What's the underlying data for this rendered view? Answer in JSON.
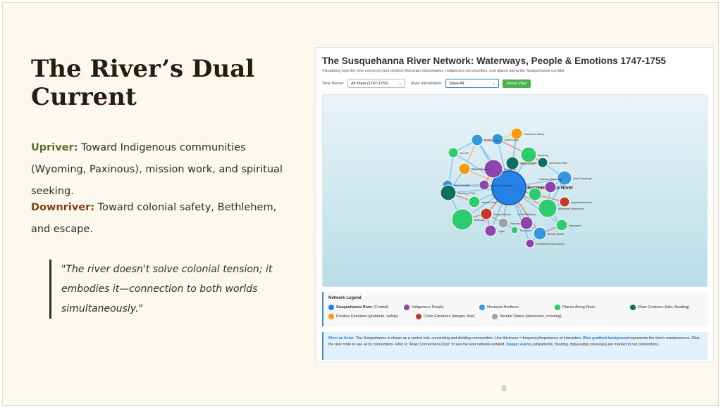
{
  "slide": {
    "title": "The River’s Dual Current",
    "upriver_label": "Upriver:",
    "upriver_text": " Toward Indigenous communities (Wyoming, Paxinous), mission work, and spiritual seeking.",
    "downriver_label": "Downriver:",
    "downriver_text": " Toward colonial safety, Bethlehem, and escape.",
    "quote": "\"The river doesn't solve colonial tension; it embodies it—connection to both worlds simultaneously.\"",
    "page_number": "8"
  },
  "app": {
    "title": "The Susquehanna River Network: Waterways, People & Emotions 1747-1755",
    "subtitle": "Visualizing how the river connects (and divides) Moravian missionaries, Indigenous communities, and places along the Susquehanna corridor",
    "time_label": "Time Period:",
    "time_value": "All Years (1747-1755)",
    "interactions_label": "River Interactions:",
    "interactions_value": "Show All",
    "reset_label": "Reset View"
  },
  "colors": {
    "river": "#2481e6",
    "indigenous": "#8e44ad",
    "moravian": "#3498db",
    "places": "#2ecc71",
    "features": "#0e7060",
    "positive": "#f39c12",
    "crisis": "#c0392b",
    "neutral": "#95a5a6"
  },
  "nodes": [
    {
      "label": "Susquehanna River",
      "type": "river"
    },
    {
      "label": "Grateful for Safety",
      "type": "positive"
    },
    {
      "label": "Martin Mack",
      "type": "moravian"
    },
    {
      "label": "Brother Grube",
      "type": "moravian"
    },
    {
      "label": "The Mill",
      "type": "places"
    },
    {
      "label": "Wyoming",
      "type": "places"
    },
    {
      "label": "Gnadenhütten",
      "type": "features"
    },
    {
      "label": "Ice/Frozen River",
      "type": "features"
    },
    {
      "label": "Shekomeko",
      "type": "indigenous"
    },
    {
      "label": "Divine Protection",
      "type": "positive"
    },
    {
      "label": "David Zeisberger",
      "type": "moravian"
    },
    {
      "label": "Marcus Kieffer",
      "type": "moravian"
    },
    {
      "label": "Nanticoke Migration",
      "type": "indigenous"
    },
    {
      "label": "Paxinous (Wyoming)",
      "type": "indigenous"
    },
    {
      "label": "Flooding (1754)",
      "type": "features"
    },
    {
      "label": "Impassable Barrier",
      "type": "crisis"
    },
    {
      "label": "Harris's Ferry",
      "type": "places"
    },
    {
      "label": "Bethlehem (downriver)",
      "type": "places"
    },
    {
      "label": "",
      "type": "places"
    },
    {
      "label": "Danger/Anxiety",
      "type": "crisis"
    },
    {
      "label": "Shamokin",
      "type": "places"
    },
    {
      "label": "Observant Crossing",
      "type": "neutral"
    },
    {
      "label": "John Shikellamy",
      "type": "indigenous"
    },
    {
      "label": "Nescopeck",
      "type": "places"
    },
    {
      "label": "Logan",
      "type": "indigenous"
    },
    {
      "label": "The Island",
      "type": "places"
    },
    {
      "label": "Brother Rösler",
      "type": "moravian"
    },
    {
      "label": "Old Nutimes (Nescopeck)",
      "type": "indigenous"
    }
  ],
  "legend": {
    "title": "Network Legend",
    "items": [
      {
        "bold": "Susquehanna River",
        "label": " (Central)",
        "color": "#2481e6"
      },
      {
        "bold": "",
        "label": "Indigenous People",
        "color": "#8e44ad"
      },
      {
        "bold": "",
        "label": "Moravian Brothers",
        "color": "#3498db"
      },
      {
        "bold": "",
        "label": "Places Along River",
        "color": "#2ecc71"
      },
      {
        "bold": "",
        "label": "River Features (falls, flooding)",
        "color": "#0e7060"
      },
      {
        "bold": "",
        "label": "Positive Emotions (gratitude, safety)",
        "color": "#f39c12"
      },
      {
        "bold": "",
        "label": "Crisis Emotions (danger, fear)",
        "color": "#c0392b"
      },
      {
        "bold": "",
        "label": "Neutral States (observant, crossing)",
        "color": "#95a5a6"
      }
    ]
  },
  "note": {
    "b1": "River as Actor:",
    "t1": " The Susquehanna is shown as a central hub, connecting and dividing communities. Line thickness = frequency/importance of interaction. ",
    "b2": "Blue gradient background",
    "t2": " represents the river's omnipresence. Click the river node to see all its connections. Filter to \"River Connections Only\" to see the river network isolated. ",
    "b3": "Danger events",
    "t3": " (shipwrecks, flooding, impassable crossings) are marked in red connections."
  }
}
